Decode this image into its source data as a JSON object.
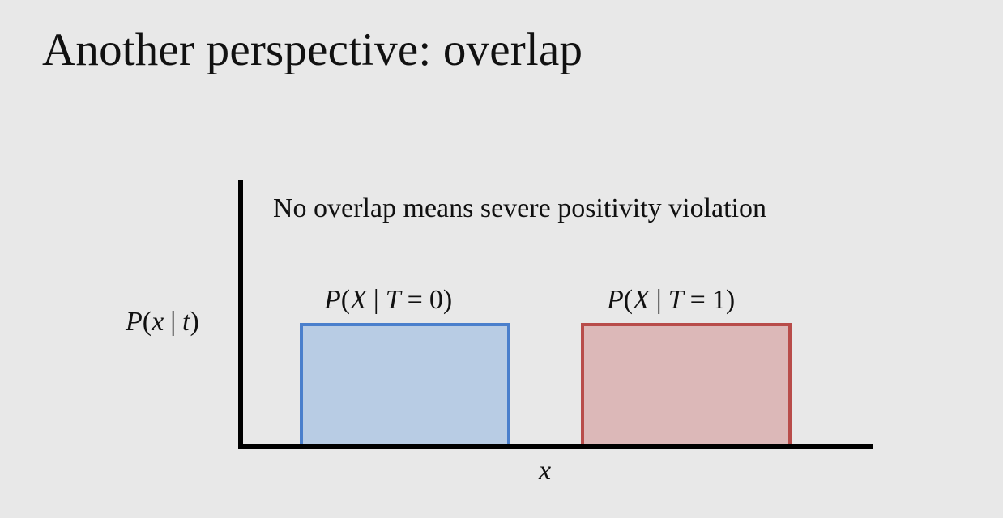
{
  "slide": {
    "title": "Another perspective: overlap",
    "annotation": "No overlap means severe positivity violation"
  },
  "axes": {
    "y_label": {
      "func": "P",
      "var": "x",
      "cond": "t"
    },
    "x_label": "x"
  },
  "distributions": [
    {
      "label": {
        "func": "P",
        "var": "X",
        "cond": "T",
        "value": "0"
      },
      "x_range": [
        0.0,
        0.45
      ],
      "density": 1.0,
      "stroke": "#4a7fcc",
      "fill": "#b8cce4"
    },
    {
      "label": {
        "func": "P",
        "var": "X",
        "cond": "T",
        "value": "1"
      },
      "x_range": [
        0.6,
        1.05
      ],
      "density": 1.0,
      "stroke": "#b84c4a",
      "fill": "#dcb8b8"
    }
  ],
  "colors": {
    "background": "#e8e8e8",
    "axis": "#000000",
    "text": "#111111"
  }
}
